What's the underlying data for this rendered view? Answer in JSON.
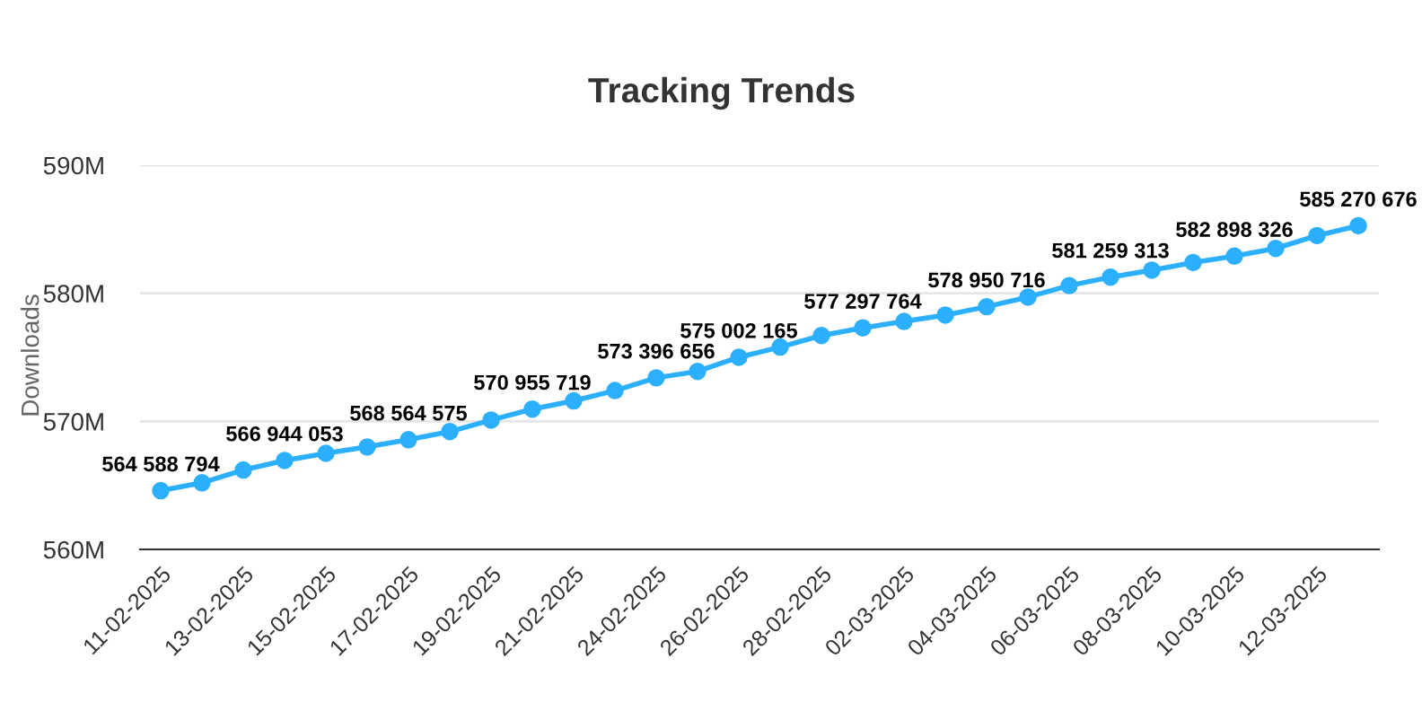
{
  "chart_data": {
    "type": "line",
    "title": "Tracking Trends",
    "ylabel": "Downloads",
    "categories": [
      "11-02-2025",
      null,
      "13-02-2025",
      null,
      "15-02-2025",
      null,
      "17-02-2025",
      null,
      "19-02-2025",
      null,
      "21-02-2025",
      null,
      "24-02-2025",
      null,
      "26-02-2025",
      null,
      "28-02-2025",
      null,
      "02-03-2025",
      null,
      "04-03-2025",
      null,
      "06-03-2025",
      null,
      "08-03-2025",
      null,
      "10-03-2025",
      null,
      "12-03-2025",
      null
    ],
    "series": [
      {
        "color": "#2caffe",
        "values": [
          564588794,
          565200000,
          566200000,
          566944053,
          567500000,
          568000000,
          568564575,
          569200000,
          570100000,
          570955719,
          571600000,
          572400000,
          573396656,
          573900000,
          575002165,
          575800000,
          576700000,
          577297764,
          577800000,
          578300000,
          578950716,
          579700000,
          580600000,
          581259313,
          581800000,
          582400000,
          582898326,
          583500000,
          584500000,
          585270676
        ],
        "value_labels": [
          "564 588 794",
          null,
          null,
          "566 944 053",
          null,
          null,
          "568 564 575",
          null,
          null,
          "570 955 719",
          null,
          null,
          "573 396 656",
          null,
          "575 002 165",
          null,
          null,
          "577 297 764",
          null,
          null,
          "578 950 716",
          null,
          null,
          "581 259 313",
          null,
          null,
          "582 898 326",
          null,
          null,
          "585 270 676"
        ]
      }
    ],
    "ylim": [
      560000000,
      590000000
    ],
    "yticks": [
      {
        "value": 560000000,
        "label": "560M"
      },
      {
        "value": 570000000,
        "label": "570M"
      },
      {
        "value": 580000000,
        "label": "580M"
      },
      {
        "value": 590000000,
        "label": "590M"
      }
    ],
    "grid": "y",
    "marker": "circle",
    "line_style": "solid"
  }
}
